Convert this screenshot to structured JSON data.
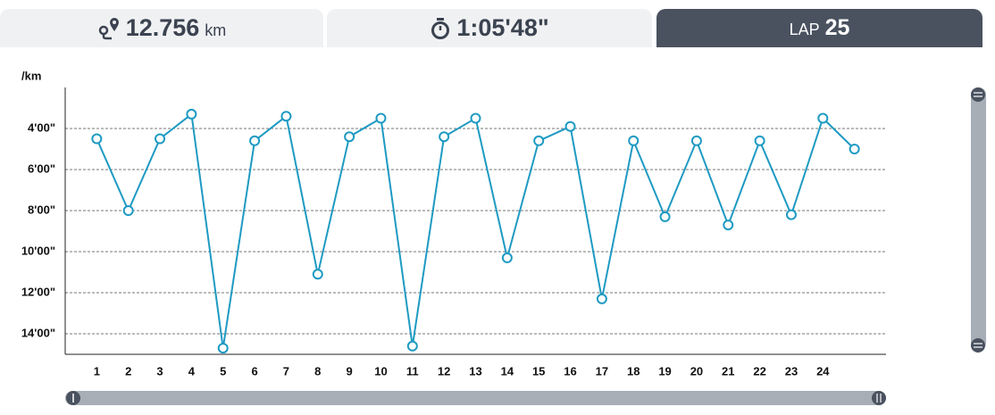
{
  "header": {
    "distance": "12.756",
    "distance_unit": "km",
    "time": "1:05'48\"",
    "lap_label": "LAP",
    "lap": "25"
  },
  "chart_data": {
    "type": "line",
    "y_label": "/km",
    "color": "#1e9ac2",
    "categories": [
      "1",
      "2",
      "3",
      "4",
      "5",
      "6",
      "7",
      "8",
      "9",
      "10",
      "11",
      "12",
      "13",
      "14",
      "15",
      "16",
      "17",
      "18",
      "19",
      "20",
      "21",
      "22",
      "23",
      "24",
      null
    ],
    "values": [
      4.5,
      8.0,
      4.5,
      3.3,
      14.7,
      4.6,
      3.4,
      11.1,
      4.4,
      3.5,
      14.6,
      4.4,
      3.5,
      10.3,
      4.6,
      3.9,
      12.3,
      4.6,
      8.3,
      4.6,
      8.7,
      4.6,
      8.2,
      3.5,
      5.0
    ],
    "ylim": [
      15,
      2
    ],
    "yticks": [
      {
        "value": 4,
        "label": "4'00\""
      },
      {
        "value": 6,
        "label": "6'00\""
      },
      {
        "value": 8,
        "label": "8'00\""
      },
      {
        "value": 10,
        "label": "10'00\""
      },
      {
        "value": 12,
        "label": "12'00\""
      },
      {
        "value": 14,
        "label": "14'00\""
      }
    ],
    "grid": true
  }
}
